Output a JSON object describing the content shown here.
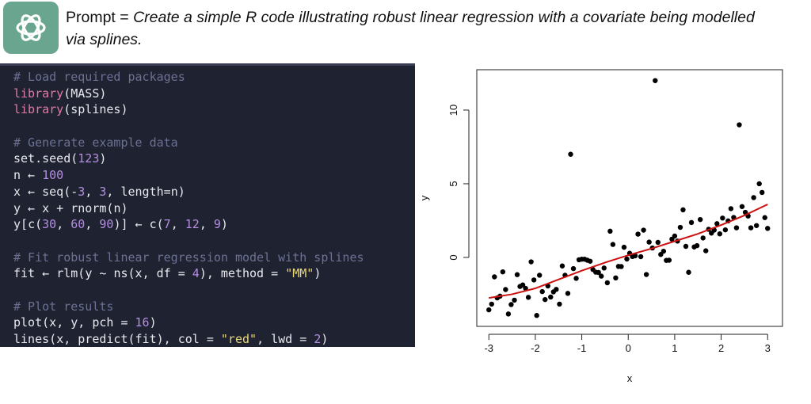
{
  "prompt": {
    "label": "Prompt =",
    "text": "Create a simple R code illustrating robust linear regression with a covariate being modelled via splines."
  },
  "code": {
    "blocks": [
      [
        "# Load required packages",
        "library(MASS)",
        "library(splines)"
      ],
      [
        "# Generate example data",
        "set.seed(123)",
        "n ← 100",
        "x ← seq(-3, 3, length=n)",
        "y ← x + rnorm(n)",
        "y[c(30, 60, 90)] ← c(7, 12, 9)"
      ],
      [
        "# Fit robust linear regression model with splines",
        "fit ← rlm(y ~ ns(x, df = 4), method = \"MM\")"
      ],
      [
        "# Plot results",
        "plot(x, y, pch = 16)",
        "lines(x, predict(fit), col = \"red\", lwd = 2)"
      ]
    ]
  },
  "chart_data": {
    "type": "scatter",
    "x_label": "x",
    "y_label": "y",
    "color": "#000000",
    "xlim": [
      -3.26,
      3.32
    ],
    "xticks": [
      -3,
      -2,
      -1,
      0,
      1,
      2,
      3
    ],
    "ylim": [
      -4.68,
      12.74
    ],
    "yticks": [
      0,
      5,
      10
    ],
    "x": [
      -3.0,
      -2.94,
      -2.88,
      -2.82,
      -2.76,
      -2.7,
      -2.64,
      -2.58,
      -2.52,
      -2.45,
      -2.39,
      -2.33,
      -2.27,
      -2.21,
      -2.15,
      -2.09,
      -2.03,
      -1.97,
      -1.91,
      -1.85,
      -1.79,
      -1.73,
      -1.67,
      -1.61,
      -1.55,
      -1.48,
      -1.42,
      -1.36,
      -1.3,
      -1.24,
      -1.18,
      -1.12,
      -1.06,
      -1.0,
      -0.94,
      -0.88,
      -0.82,
      -0.76,
      -0.7,
      -0.64,
      -0.58,
      -0.52,
      -0.45,
      -0.39,
      -0.33,
      -0.27,
      -0.21,
      -0.15,
      -0.09,
      -0.03,
      0.03,
      0.09,
      0.15,
      0.21,
      0.27,
      0.33,
      0.39,
      0.45,
      0.52,
      0.58,
      0.64,
      0.7,
      0.76,
      0.82,
      0.88,
      0.94,
      1.0,
      1.06,
      1.12,
      1.18,
      1.24,
      1.3,
      1.36,
      1.42,
      1.48,
      1.55,
      1.61,
      1.67,
      1.73,
      1.79,
      1.85,
      1.91,
      1.97,
      2.03,
      2.09,
      2.15,
      2.21,
      2.27,
      2.33,
      2.39,
      2.45,
      2.52,
      2.58,
      2.64,
      2.7,
      2.76,
      2.82,
      2.88,
      2.94,
      3.0
    ],
    "values": [
      -3.56,
      -3.17,
      -1.32,
      -2.75,
      -2.63,
      -0.98,
      -2.18,
      -3.84,
      -3.2,
      -2.9,
      -1.17,
      -1.97,
      -1.87,
      -2.1,
      -2.71,
      -0.3,
      -1.53,
      -3.94,
      -1.21,
      -2.32,
      -2.86,
      -1.94,
      -2.69,
      -2.34,
      -2.17,
      -3.17,
      -0.58,
      -1.21,
      -2.44,
      7,
      -0.76,
      -1.42,
      -0.16,
      -0.12,
      -0.12,
      -0.19,
      -0.26,
      -0.82,
      -1.0,
      -1.02,
      -1.27,
      -0.72,
      -1.72,
      1.78,
      0.88,
      -1.39,
      -0.61,
      -0.62,
      0.69,
      -0.11,
      0.28,
      0.06,
      0.11,
      1.58,
      0.05,
      1.85,
      -1.16,
      1.04,
      0.64,
      12,
      1.02,
      0.2,
      0.42,
      -0.2,
      -0.19,
      1.24,
      1.45,
      1.11,
      2.04,
      3.23,
      0.75,
      -1.01,
      2.37,
      0.71,
      0.8,
      2.57,
      1.32,
      0.45,
      1.91,
      1.65,
      1.85,
      2.29,
      1.6,
      2.67,
      1.87,
      2.48,
      3.31,
      2.71,
      2.01,
      9,
      3.45,
      3.06,
      2.81,
      2.01,
      4.06,
      2.16,
      5.0,
      4.41,
      2.7,
      1.97
    ],
    "fit": {
      "color": "#cc1111",
      "x": [
        -3,
        -2.5,
        -2,
        -1.5,
        -1,
        -0.5,
        0,
        0.5,
        1,
        1.5,
        2,
        2.5,
        3
      ],
      "values": [
        -2.75,
        -2.5,
        -2.1,
        -1.5,
        -0.9,
        -0.35,
        0.15,
        0.6,
        1.1,
        1.6,
        2.2,
        2.85,
        3.6
      ]
    }
  }
}
